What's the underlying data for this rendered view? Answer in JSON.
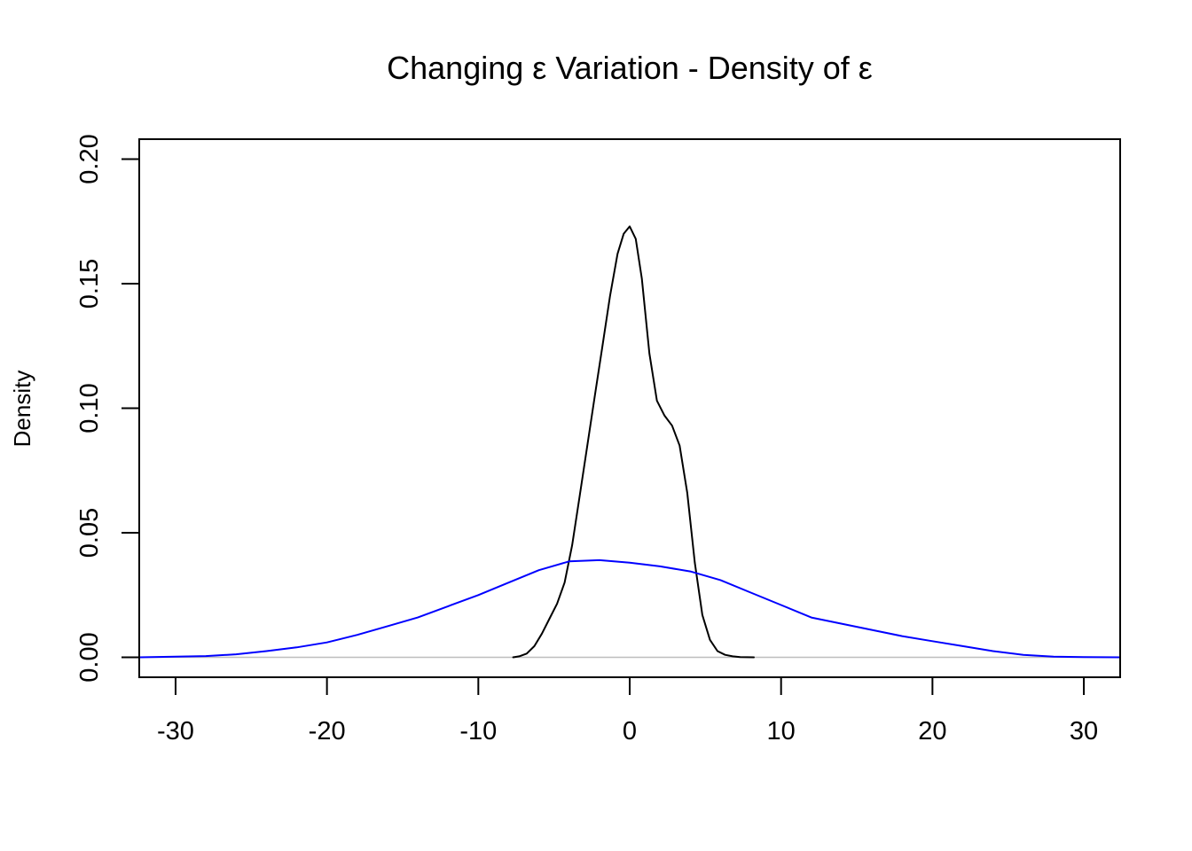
{
  "chart_data": {
    "type": "line",
    "title": "Changing ε Variation - Density of ε",
    "xlabel": "",
    "ylabel": "Density",
    "xlim": [
      -32.4,
      32.4
    ],
    "ylim": [
      -0.008,
      0.208
    ],
    "x_ticks": [
      -30,
      -20,
      -10,
      0,
      10,
      20,
      30
    ],
    "x_tick_labels": [
      "-30",
      "-20",
      "-10",
      "0",
      "10",
      "20",
      "30"
    ],
    "y_ticks": [
      0.0,
      0.05,
      0.1,
      0.15,
      0.2
    ],
    "y_tick_labels": [
      "0.00",
      "0.05",
      "0.10",
      "0.15",
      "0.20"
    ],
    "reference_line": {
      "y": 0,
      "color": "#bebebe"
    },
    "grid": false,
    "legend": null,
    "series": [
      {
        "color": "#000000",
        "x": [
          -7.7,
          -7.3,
          -6.8,
          -6.3,
          -5.8,
          -5.3,
          -4.8,
          -4.3,
          -3.8,
          -3.3,
          -2.8,
          -2.3,
          -1.8,
          -1.3,
          -0.8,
          -0.4,
          0.0,
          0.4,
          0.8,
          1.3,
          1.8,
          2.3,
          2.8,
          3.3,
          3.8,
          4.3,
          4.8,
          5.3,
          5.8,
          6.3,
          6.8,
          7.3,
          8.2
        ],
        "y": [
          0.0,
          0.0004,
          0.0015,
          0.0045,
          0.0095,
          0.0155,
          0.0215,
          0.03,
          0.045,
          0.065,
          0.085,
          0.105,
          0.125,
          0.145,
          0.162,
          0.17,
          0.173,
          0.168,
          0.152,
          0.122,
          0.103,
          0.097,
          0.093,
          0.085,
          0.066,
          0.038,
          0.017,
          0.007,
          0.0025,
          0.001,
          0.0004,
          0.0001,
          0.0
        ]
      },
      {
        "color": "#0000ff",
        "x": [
          -32.4,
          -28,
          -26,
          -24,
          -22,
          -20,
          -18,
          -16,
          -14,
          -12,
          -10,
          -8,
          -6,
          -4,
          -2,
          0,
          2,
          4,
          6,
          8,
          10,
          12,
          14,
          16,
          18,
          20,
          22,
          24,
          26,
          28,
          30,
          32.4
        ],
        "y": [
          0.0,
          0.0005,
          0.0012,
          0.0025,
          0.004,
          0.006,
          0.009,
          0.0125,
          0.016,
          0.0205,
          0.025,
          0.03,
          0.035,
          0.0385,
          0.039,
          0.038,
          0.0365,
          0.0345,
          0.031,
          0.026,
          0.021,
          0.016,
          0.0135,
          0.011,
          0.0085,
          0.0065,
          0.0045,
          0.0025,
          0.001,
          0.0003,
          0.0001,
          0.0
        ]
      }
    ]
  }
}
